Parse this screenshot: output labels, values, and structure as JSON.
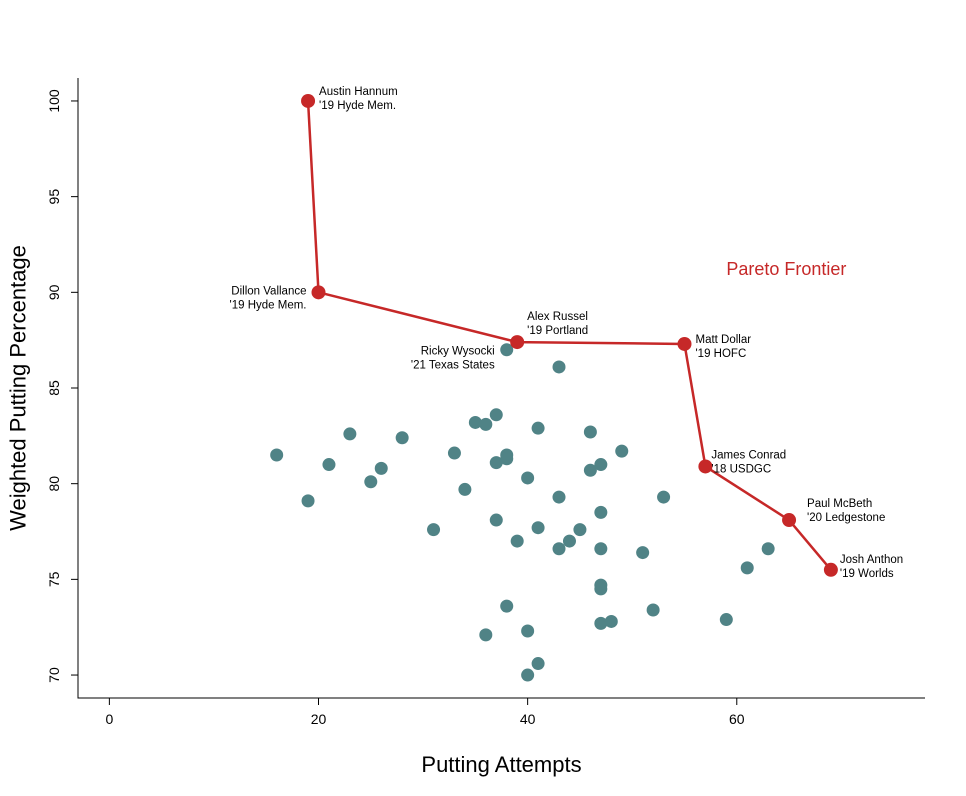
{
  "chart_data": {
    "type": "scatter",
    "xlabel": "Putting Attempts",
    "ylabel": "Weighted Putting Percentage",
    "xlim": [
      -3,
      78
    ],
    "ylim": [
      68.8,
      101.2
    ],
    "xticks": [
      0,
      20,
      40,
      60
    ],
    "yticks": [
      70,
      75,
      80,
      85,
      90,
      95,
      100
    ],
    "grid": false,
    "colors": {
      "points": "#508386",
      "frontier": "#c62828"
    },
    "annotation": {
      "text": "Pareto Frontier",
      "x": 59,
      "y": 90.9
    },
    "points": [
      [
        16,
        81.5
      ],
      [
        19,
        79.1
      ],
      [
        21,
        81.0
      ],
      [
        23,
        82.6
      ],
      [
        25,
        80.1
      ],
      [
        26,
        80.8
      ],
      [
        28,
        82.4
      ],
      [
        31,
        77.6
      ],
      [
        33,
        81.6
      ],
      [
        34,
        79.7
      ],
      [
        35,
        83.2
      ],
      [
        36,
        83.1
      ],
      [
        36,
        72.1
      ],
      [
        37,
        83.6
      ],
      [
        37,
        81.1
      ],
      [
        37,
        78.1
      ],
      [
        38,
        81.5
      ],
      [
        38,
        81.3
      ],
      [
        38,
        73.6
      ],
      [
        38,
        87.0
      ],
      [
        39,
        77.0
      ],
      [
        40,
        80.3
      ],
      [
        40,
        72.3
      ],
      [
        40,
        70.0
      ],
      [
        41,
        82.9
      ],
      [
        41,
        77.7
      ],
      [
        41,
        70.6
      ],
      [
        43,
        86.1
      ],
      [
        43,
        79.3
      ],
      [
        43,
        76.6
      ],
      [
        44,
        77.0
      ],
      [
        45,
        77.6
      ],
      [
        46,
        82.7
      ],
      [
        46,
        80.7
      ],
      [
        47,
        81.0
      ],
      [
        47,
        78.5
      ],
      [
        47,
        76.6
      ],
      [
        47,
        74.7
      ],
      [
        47,
        74.5
      ],
      [
        47,
        72.7
      ],
      [
        48,
        72.8
      ],
      [
        49,
        81.7
      ],
      [
        51,
        76.4
      ],
      [
        52,
        73.4
      ],
      [
        53,
        79.3
      ],
      [
        59,
        72.9
      ],
      [
        61,
        75.6
      ],
      [
        63,
        76.6
      ]
    ],
    "frontier": [
      {
        "x": 19,
        "y": 100.0,
        "name": "Austin Hannum",
        "event": "'19 Hyde Mem."
      },
      {
        "x": 20,
        "y": 90.0,
        "name": "Dillon Vallance",
        "event": "'19 Hyde Mem."
      },
      {
        "x": 39,
        "y": 87.4,
        "name": "Alex Russel",
        "event": "'19 Portland"
      },
      {
        "x": 55,
        "y": 87.3,
        "name": "Matt Dollar",
        "event": "'19 HOFC"
      },
      {
        "x": 57,
        "y": 80.9,
        "name": "James Conrad",
        "event": "'18 USDGC"
      },
      {
        "x": 65,
        "y": 78.1,
        "name": "Paul McBeth",
        "event": "'20 Ledgestone"
      },
      {
        "x": 69,
        "y": 75.5,
        "name": "Josh Anthon",
        "event": "'19 Worlds"
      }
    ],
    "extra_labels": [
      {
        "name": "Ricky Wysocki",
        "event": "'21 Texas States"
      }
    ]
  }
}
